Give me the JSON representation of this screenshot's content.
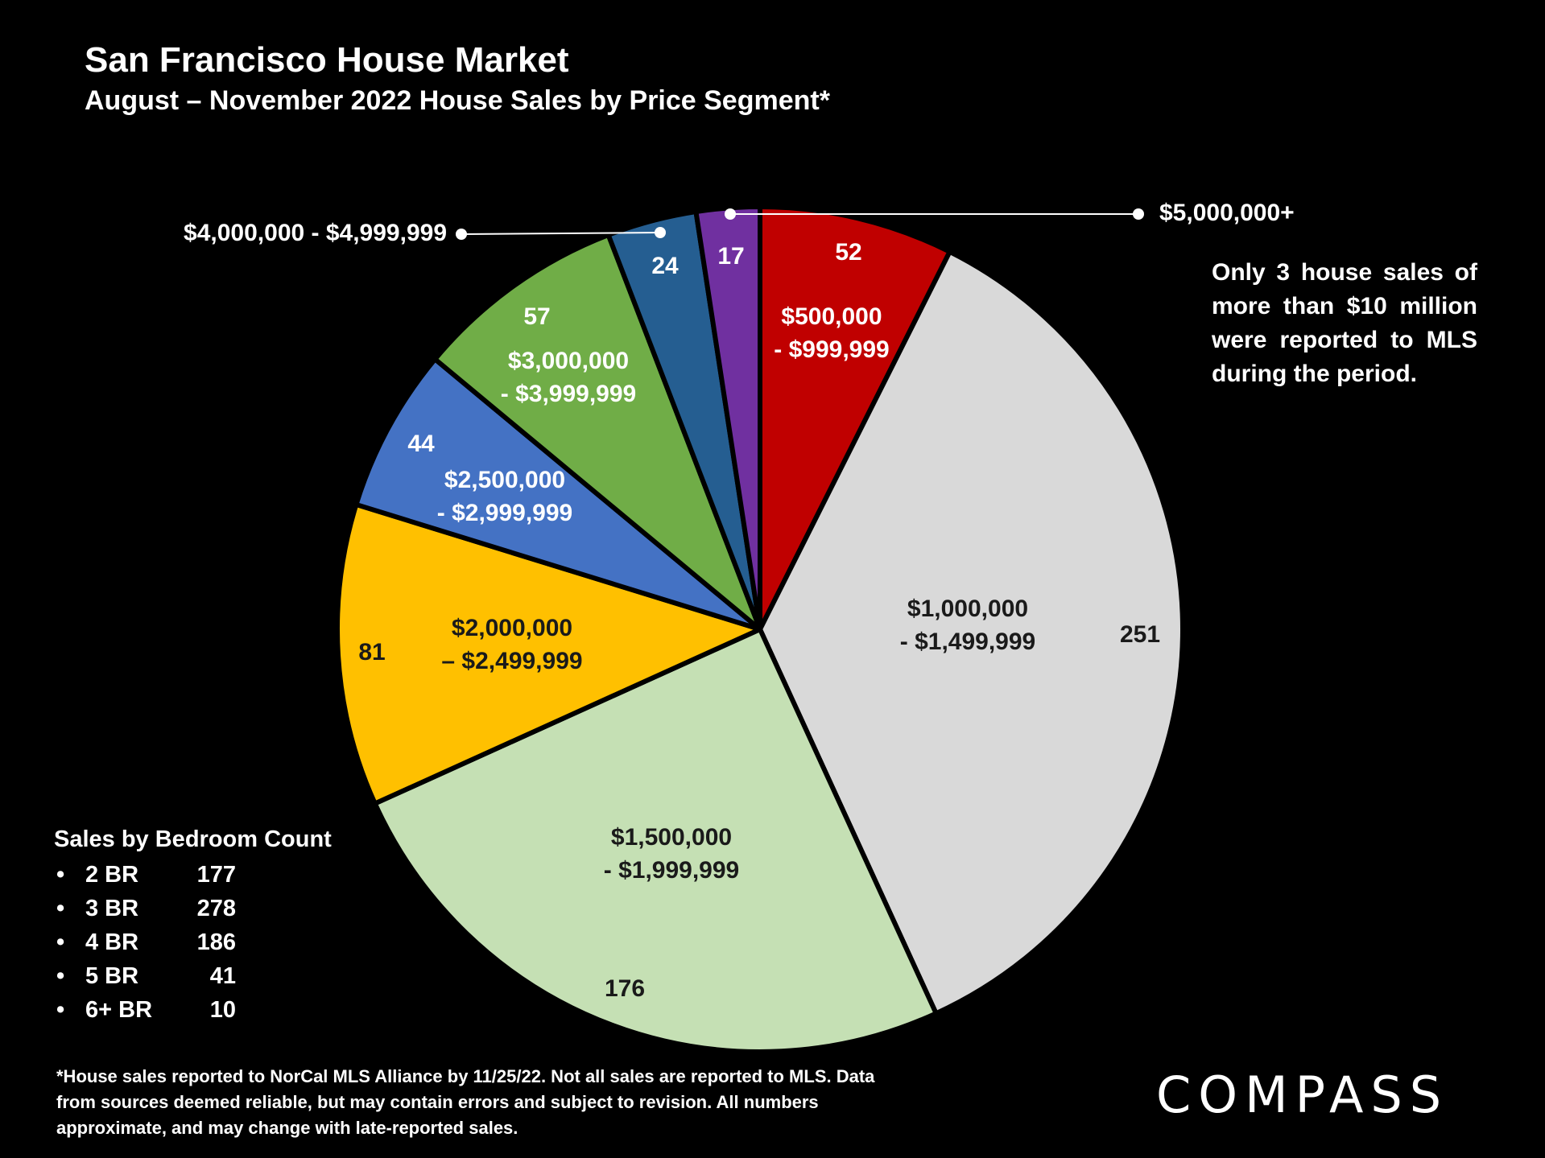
{
  "chart_data": {
    "type": "pie",
    "title": "San Francisco House Market",
    "subtitle": "August – November 2022 House Sales by Price Segment*",
    "slices": [
      {
        "label_lines": [
          "$500,000",
          "- $999,999"
        ],
        "value": 52,
        "value_label": "52",
        "color": "#c00000",
        "label_color": "#ffffff"
      },
      {
        "label_lines": [
          "$1,000,000",
          "- $1,499,999"
        ],
        "value": 251,
        "value_label": "251",
        "color": "#d9d9d9",
        "label_color": "#1a1a1a"
      },
      {
        "label_lines": [
          "$1,500,000",
          "- $1,999,999"
        ],
        "value": 176,
        "value_label": "176",
        "color": "#c5e0b4",
        "label_color": "#1a1a1a"
      },
      {
        "label_lines": [
          "$2,000,000",
          "– $2,499,999"
        ],
        "value": 81,
        "value_label": "81",
        "color": "#ffc000",
        "label_color": "#1a1a1a"
      },
      {
        "label_lines": [
          "$2,500,000",
          "- $2,999,999"
        ],
        "value": 44,
        "value_label": "44",
        "color": "#4472c4",
        "label_color": "#ffffff"
      },
      {
        "label_lines": [
          "$3,000,000",
          "- $3,999,999"
        ],
        "value": 57,
        "value_label": "57",
        "color": "#70ad47",
        "label_color": "#ffffff"
      },
      {
        "label_lines": [
          "$4,000,000 - $4,999,999"
        ],
        "value": 24,
        "value_label": "24",
        "color": "#255e91",
        "label_color": "#ffffff",
        "callout": "left"
      },
      {
        "label_lines": [
          "$5,000,000+"
        ],
        "value": 17,
        "value_label": "17",
        "color": "#7030a0",
        "label_color": "#ffffff",
        "callout": "right"
      }
    ]
  },
  "note": "Only 3 house sales of more than $10 million were reported to MLS during the period.",
  "bedroom": {
    "title": "Sales by Bedroom Count",
    "rows": [
      {
        "bullet": "•",
        "label": "2 BR",
        "count": "177"
      },
      {
        "bullet": "•",
        "label": "3 BR",
        "count": "278"
      },
      {
        "bullet": "•",
        "label": "4 BR",
        "count": "186"
      },
      {
        "bullet": "•",
        "label": "5 BR",
        "count": "41"
      },
      {
        "bullet": "•",
        "label": "6+ BR",
        "count": "10"
      }
    ]
  },
  "footnote": "*House sales reported to NorCal MLS Alliance by 11/25/22. Not all sales are reported to MLS. Data from sources deemed reliable, but may contain errors and subject to revision. All numbers approximate, and may change with late-reported sales.",
  "logo": {
    "text": "COMPASS"
  }
}
